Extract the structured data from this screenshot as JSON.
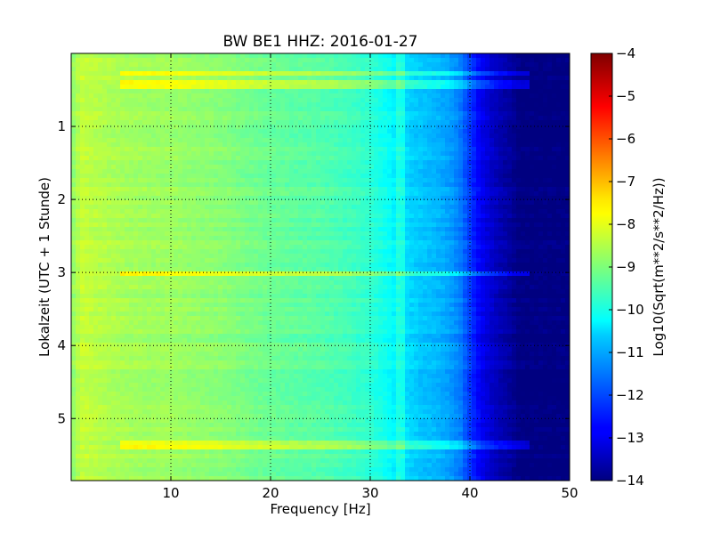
{
  "chart_data": {
    "type": "heatmap",
    "title": "BW BE1 HHZ: 2016-01-27",
    "xlabel": "Frequency [Hz]",
    "ylabel": "Lokalzeit (UTC + 1 Stunde)",
    "xlim": [
      0,
      50
    ],
    "ylim": [
      5.85,
      0
    ],
    "x_ticks": [
      10,
      20,
      30,
      40,
      50
    ],
    "x_tick_labels": [
      "10",
      "20",
      "30",
      "40",
      "50"
    ],
    "y_ticks": [
      1,
      2,
      3,
      4,
      5
    ],
    "y_tick_labels": [
      "1",
      "2",
      "3",
      "4",
      "5"
    ],
    "grid": true,
    "colormap": "jet",
    "colorbar": {
      "label": "Log10(Sqrt(m**2/s**2/Hz))",
      "range": [
        -14,
        -4
      ],
      "ticks": [
        -4,
        -5,
        -6,
        -7,
        -8,
        -9,
        -10,
        -11,
        -12,
        -13,
        -14
      ],
      "tick_labels": [
        "−4",
        "−5",
        "−6",
        "−7",
        "−8",
        "−9",
        "−10",
        "−11",
        "−12",
        "−13",
        "−14"
      ]
    },
    "frequency_profile": {
      "frequency_hz": [
        0,
        1,
        2,
        5,
        8,
        10,
        12,
        15,
        18,
        20,
        22,
        25,
        28,
        30,
        32,
        33,
        35,
        37,
        38,
        39,
        40,
        41,
        42,
        43,
        44,
        45,
        50
      ],
      "log10_amplitude": [
        -8.9,
        -8.3,
        -8.4,
        -8.6,
        -8.7,
        -8.7,
        -8.8,
        -8.9,
        -9.1,
        -9.2,
        -9.3,
        -9.4,
        -9.6,
        -9.8,
        -10.2,
        -10.5,
        -10.8,
        -11.0,
        -11.2,
        -11.5,
        -12.2,
        -12.8,
        -13.2,
        -13.5,
        -13.7,
        -14.0,
        -14.0
      ]
    },
    "bright_bands_hours": [
      0.28,
      0.42,
      3.02,
      5.37
    ],
    "hours_range": [
      0,
      5.85
    ]
  }
}
